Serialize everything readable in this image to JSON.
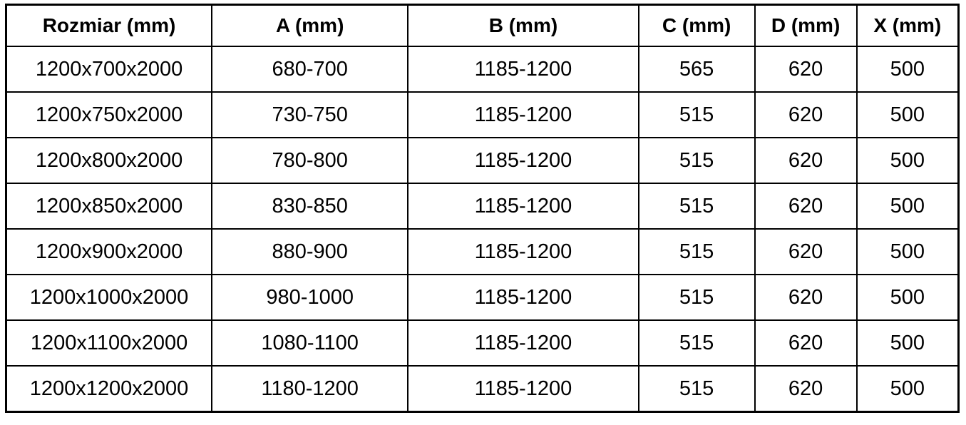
{
  "table": {
    "columns": [
      {
        "label": "Rozmiar (mm)"
      },
      {
        "label": "A (mm)"
      },
      {
        "label": "B (mm)"
      },
      {
        "label": "C (mm)"
      },
      {
        "label": "D (mm)"
      },
      {
        "label": "X (mm)"
      }
    ],
    "rows": [
      [
        "1200x700x2000",
        "680-700",
        "1185-1200",
        "565",
        "620",
        "500"
      ],
      [
        "1200x750x2000",
        "730-750",
        "1185-1200",
        "515",
        "620",
        "500"
      ],
      [
        "1200x800x2000",
        "780-800",
        "1185-1200",
        "515",
        "620",
        "500"
      ],
      [
        "1200x850x2000",
        "830-850",
        "1185-1200",
        "515",
        "620",
        "500"
      ],
      [
        "1200x900x2000",
        "880-900",
        "1185-1200",
        "515",
        "620",
        "500"
      ],
      [
        "1200x1000x2000",
        "980-1000",
        "1185-1200",
        "515",
        "620",
        "500"
      ],
      [
        "1200x1100x2000",
        "1080-1100",
        "1185-1200",
        "515",
        "620",
        "500"
      ],
      [
        "1200x1200x2000",
        "1180-1200",
        "1185-1200",
        "515",
        "620",
        "500"
      ]
    ]
  },
  "colors": {
    "border": "#000000",
    "text": "#000000",
    "background": "#ffffff"
  }
}
